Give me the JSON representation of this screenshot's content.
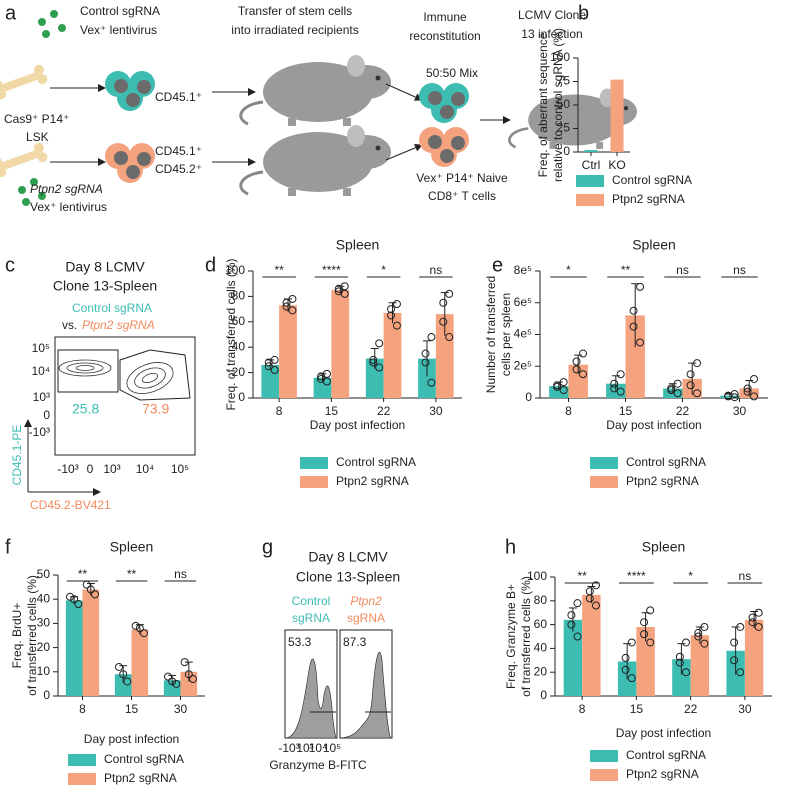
{
  "panel_labels": [
    "a",
    "b",
    "c",
    "d",
    "e",
    "f",
    "g",
    "h"
  ],
  "schematic": {
    "virus_top": [
      "Control sgRNA",
      "Vex⁺ lentivirus"
    ],
    "donor": [
      "Cas9⁺ P14⁺",
      "LSK"
    ],
    "cells_top": "CD45.1⁺",
    "cells_bottom": [
      "CD45.1⁺",
      "CD45.2⁺"
    ],
    "virus_bottom": [
      "Ptpn2 sgRNA",
      "Vex⁺ lentivirus"
    ],
    "transfer": [
      "Transfer of stem cells",
      "into irradiated recipients"
    ],
    "reconstitution": [
      "Immune",
      "reconstitution"
    ],
    "mix": "50:50 Mix",
    "naive": [
      "Vex⁺ P14⁺ Naive",
      "CD8⁺ T cells"
    ],
    "infection": [
      "LCMV Clone",
      "13 infection"
    ]
  },
  "flow_plot": {
    "title": [
      "Day 8 LCMV",
      "Clone 13-Spleen"
    ],
    "group1": "Control sgRNA",
    "vs": "vs.",
    "group2": "Ptpn2 sgRNA",
    "gate1": "25.8",
    "gate2": "73.9",
    "yticks": [
      "10⁵",
      "10⁴",
      "10³",
      "0",
      "-10³"
    ],
    "xticks": [
      "-10³",
      "0",
      "10³",
      "10⁴",
      "10⁵"
    ],
    "ylabel": "CD45.1-PE",
    "xlabel": "CD45.2-BV421"
  },
  "histograms": {
    "title": [
      "Day 8 LCMV",
      "Clone 13-Spleen"
    ],
    "group1": [
      "Control",
      "sgRNA"
    ],
    "group2": [
      "Ptpn2",
      "sgRNA"
    ],
    "gate1": "53.3",
    "gate2": "87.3",
    "xticks": [
      "-10³",
      "10³",
      "10⁴",
      "10⁵"
    ],
    "xlabel": "Granzyme B-FITC"
  },
  "chart_data": [
    {
      "type": "bar",
      "categories": [
        "Ctrl",
        "KO"
      ],
      "ylabel": [
        "Freq. of aberrant sequence",
        "relative to control sgRNA (%)"
      ],
      "ylim": [
        0,
        100
      ],
      "yticks": [
        0,
        25,
        50,
        75,
        100
      ],
      "series": [
        {
          "name": "Control sgRNA",
          "color": "#3dbdb2",
          "values": [
            2,
            null
          ]
        },
        {
          "name": "Ptpn2 sgRNA",
          "color": "#f5a27f",
          "values": [
            null,
            77
          ]
        }
      ]
    },
    {
      "type": "bar",
      "title": "Spleen",
      "xlabel": "Day post infection",
      "ylabel": [
        "Freq. of transferred cells (%)"
      ],
      "categories": [
        "8",
        "15",
        "22",
        "30"
      ],
      "ylim": [
        0,
        100
      ],
      "yticks": [
        0,
        20,
        40,
        60,
        80,
        100
      ],
      "annotations": [
        "**",
        "****",
        "*",
        "ns"
      ],
      "series": [
        {
          "name": "Control sgRNA",
          "color": "#3dbdb2",
          "values": [
            26,
            16,
            31,
            31
          ],
          "errors": [
            4,
            3,
            8,
            14
          ],
          "points": [
            [
              22,
              25,
              28,
              30
            ],
            [
              13,
              15,
              17,
              19
            ],
            [
              24,
              28,
              30,
              43
            ],
            [
              12,
              28,
              35,
              48
            ]
          ]
        },
        {
          "name": "Ptpn2 sgRNA",
          "color": "#f5a27f",
          "values": [
            73,
            85,
            67,
            66
          ],
          "errors": [
            5,
            3,
            8,
            17
          ],
          "points": [
            [
              69,
              72,
              75,
              78
            ],
            [
              82,
              84,
              86,
              88
            ],
            [
              57,
              65,
              70,
              74
            ],
            [
              48,
              60,
              75,
              82
            ]
          ]
        }
      ]
    },
    {
      "type": "bar",
      "title": "Spleen",
      "xlabel": "Day post infection",
      "ylabel": [
        "Number of transferred",
        "cells per spleen"
      ],
      "categories": [
        "8",
        "15",
        "22",
        "30"
      ],
      "ylim": [
        0,
        800000
      ],
      "yticks": [
        0,
        {
          "value": 200000,
          "label": "2e⁵"
        },
        {
          "value": 400000,
          "label": "4e⁵"
        },
        {
          "value": 600000,
          "label": "6e⁵"
        },
        {
          "value": 800000,
          "label": "8e⁵"
        }
      ],
      "annotations": [
        "*",
        "**",
        "ns",
        "ns"
      ],
      "series": [
        {
          "name": "Control sgRNA",
          "color": "#3dbdb2",
          "values": [
            75000,
            90000,
            60000,
            15000
          ],
          "errors": [
            25000,
            50000,
            30000,
            10000
          ],
          "points": [
            [
              50000,
              70000,
              80000,
              100000
            ],
            [
              40000,
              60000,
              90000,
              150000
            ],
            [
              30000,
              50000,
              60000,
              90000
            ],
            [
              5000,
              10000,
              15000,
              25000
            ]
          ]
        },
        {
          "name": "Ptpn2 sgRNA",
          "color": "#f5a27f",
          "values": [
            210000,
            520000,
            120000,
            60000
          ],
          "errors": [
            60000,
            200000,
            100000,
            50000
          ],
          "points": [
            [
              150000,
              180000,
              230000,
              280000
            ],
            [
              350000,
              450000,
              550000,
              700000
            ],
            [
              30000,
              80000,
              150000,
              220000
            ],
            [
              10000,
              40000,
              60000,
              120000
            ]
          ]
        }
      ]
    },
    {
      "type": "bar",
      "title": "Spleen",
      "xlabel": "Day post infection",
      "ylabel": [
        "Freq. BrdU+",
        "of transferred cells (%)"
      ],
      "categories": [
        "8",
        "15",
        "30"
      ],
      "ylim": [
        0,
        50
      ],
      "yticks": [
        0,
        10,
        20,
        30,
        40,
        50
      ],
      "annotations": [
        "**",
        "**",
        "ns"
      ],
      "series": [
        {
          "name": "Control sgRNA",
          "color": "#3dbdb2",
          "values": [
            39.5,
            9,
            6.5
          ],
          "errors": [
            1.5,
            3.5,
            2
          ],
          "points": [
            [
              38,
              40,
              41
            ],
            [
              6,
              9,
              12
            ],
            [
              5,
              6,
              8
            ]
          ]
        },
        {
          "name": "Ptpn2 sgRNA",
          "color": "#f5a27f",
          "values": [
            44,
            27.5,
            10
          ],
          "errors": [
            2.5,
            2,
            4
          ],
          "points": [
            [
              42,
              44,
              46
            ],
            [
              26,
              28,
              29
            ],
            [
              7,
              9,
              14
            ]
          ]
        }
      ]
    },
    {
      "type": "bar",
      "title": "Spleen",
      "xlabel": "Day post infection",
      "ylabel": [
        "Freq. Granzyme B+",
        "of transferred cells (%)"
      ],
      "categories": [
        "8",
        "15",
        "22",
        "30"
      ],
      "ylim": [
        0,
        100
      ],
      "yticks": [
        0,
        20,
        40,
        60,
        80,
        100
      ],
      "annotations": [
        "**",
        "****",
        "*",
        "ns"
      ],
      "series": [
        {
          "name": "Control sgRNA",
          "color": "#3dbdb2",
          "values": [
            64,
            29,
            31,
            38
          ],
          "errors": [
            10,
            15,
            13,
            20
          ],
          "points": [
            [
              50,
              60,
              68,
              78
            ],
            [
              15,
              22,
              32,
              45
            ],
            [
              20,
              28,
              33,
              45
            ],
            [
              20,
              30,
              45,
              58
            ]
          ]
        },
        {
          "name": "Ptpn2 sgRNA",
          "color": "#f5a27f",
          "values": [
            85,
            58,
            51,
            64
          ],
          "errors": [
            7,
            12,
            7,
            7
          ],
          "points": [
            [
              76,
              82,
              88,
              93
            ],
            [
              45,
              52,
              62,
              72
            ],
            [
              44,
              50,
              53,
              58
            ],
            [
              58,
              62,
              66,
              70
            ]
          ]
        }
      ]
    }
  ]
}
